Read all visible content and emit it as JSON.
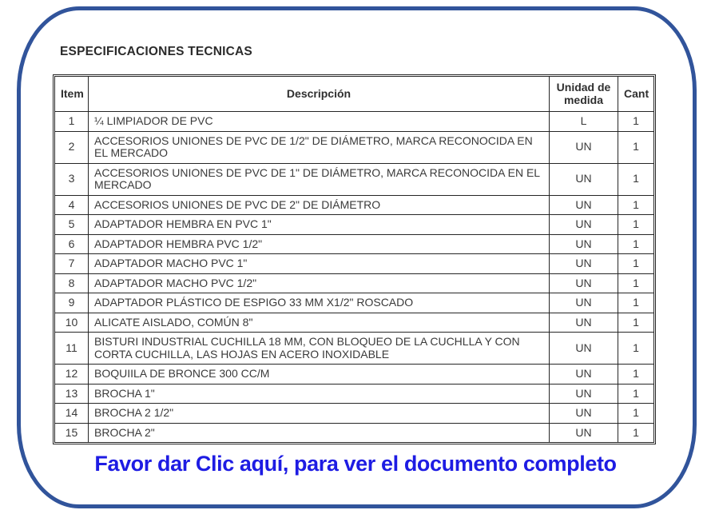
{
  "page": {
    "title": "ESPECIFICACIONES TECNICAS",
    "link_text": "Favor dar Clic aquí, para ver el documento completo"
  },
  "colors": {
    "frame_border_blue": "#31549B",
    "link_blue": "#1E1CE3",
    "table_line": "#262626",
    "text": "#3A3A3A"
  },
  "table": {
    "headers": [
      "Item",
      "Descripción",
      "Unidad de medida",
      "Cant"
    ],
    "rows": [
      {
        "item": "1",
        "desc": "¼ LIMPIADOR DE PVC",
        "unit": "L",
        "cant": "1"
      },
      {
        "item": "2",
        "desc": "ACCESORIOS UNIONES DE PVC DE  1/2\" DE DIÁMETRO, MARCA RECONOCIDA EN EL MERCADO",
        "unit": "UN",
        "cant": "1"
      },
      {
        "item": "3",
        "desc": "ACCESORIOS UNIONES DE PVC DE 1\" DE DIÁMETRO, MARCA RECONOCIDA EN EL MERCADO",
        "unit": "UN",
        "cant": "1"
      },
      {
        "item": "4",
        "desc": "ACCESORIOS UNIONES DE PVC DE 2\" DE DIÁMETRO",
        "unit": "UN",
        "cant": "1"
      },
      {
        "item": "5",
        "desc": "ADAPTADOR HEMBRA EN PVC 1\"",
        "unit": "UN",
        "cant": "1"
      },
      {
        "item": "6",
        "desc": "ADAPTADOR HEMBRA PVC 1/2\"",
        "unit": "UN",
        "cant": "1"
      },
      {
        "item": "7",
        "desc": "ADAPTADOR MACHO PVC 1\"",
        "unit": "UN",
        "cant": "1"
      },
      {
        "item": "8",
        "desc": "ADAPTADOR MACHO PVC 1/2\"",
        "unit": "UN",
        "cant": "1"
      },
      {
        "item": "9",
        "desc": "ADAPTADOR PLÁSTICO DE ESPIGO 33 MM X1/2\" ROSCADO",
        "unit": "UN",
        "cant": "1"
      },
      {
        "item": "10",
        "desc": "ALICATE AISLADO, COMÚN 8\"",
        "unit": "UN",
        "cant": "1"
      },
      {
        "item": "11",
        "desc": "BISTURI INDUSTRIAL CUCHILLA 18 MM, CON BLOQUEO DE LA CUCHLLA Y CON CORTA CUCHILLA, LAS HOJAS EN ACERO INOXIDABLE",
        "unit": "UN",
        "cant": "1"
      },
      {
        "item": "12",
        "desc": "BOQUIILA DE BRONCE 300 CC/M",
        "unit": "UN",
        "cant": "1"
      },
      {
        "item": "13",
        "desc": "BROCHA 1\"",
        "unit": "UN",
        "cant": "1"
      },
      {
        "item": "14",
        "desc": "BROCHA 2 1/2\"",
        "unit": "UN",
        "cant": "1"
      },
      {
        "item": "15",
        "desc": "BROCHA 2\"",
        "unit": "UN",
        "cant": "1"
      }
    ]
  }
}
